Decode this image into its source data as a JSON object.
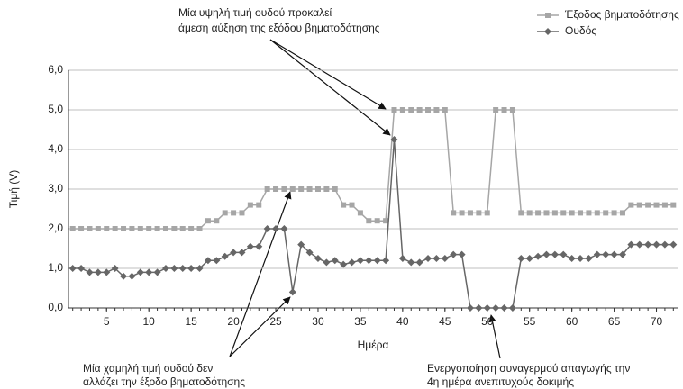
{
  "chart_data": {
    "type": "line",
    "y_label": "Τιμή (V)",
    "x_label": "Ημέρα",
    "x": [
      1,
      2,
      3,
      4,
      5,
      6,
      7,
      8,
      9,
      10,
      11,
      12,
      13,
      14,
      15,
      16,
      17,
      18,
      19,
      20,
      21,
      22,
      23,
      24,
      25,
      26,
      27,
      28,
      29,
      30,
      31,
      32,
      33,
      34,
      35,
      36,
      37,
      38,
      39,
      40,
      41,
      42,
      43,
      44,
      45,
      46,
      47,
      48,
      49,
      50,
      51,
      52,
      53,
      54,
      55,
      56,
      57,
      58,
      59,
      60,
      61,
      62,
      63,
      64,
      65,
      66,
      67,
      68,
      69,
      70,
      71,
      72
    ],
    "series": [
      {
        "name": "Έξοδος βηματοδότησης",
        "color": "#a6a6a6",
        "marker": "square",
        "values": [
          2.0,
          2.0,
          2.0,
          2.0,
          2.0,
          2.0,
          2.0,
          2.0,
          2.0,
          2.0,
          2.0,
          2.0,
          2.0,
          2.0,
          2.0,
          2.0,
          2.2,
          2.2,
          2.4,
          2.4,
          2.4,
          2.6,
          2.6,
          3.0,
          3.0,
          3.0,
          3.0,
          3.0,
          3.0,
          3.0,
          3.0,
          3.0,
          2.6,
          2.6,
          2.4,
          2.2,
          2.2,
          2.2,
          5.0,
          5.0,
          5.0,
          5.0,
          5.0,
          5.0,
          5.0,
          2.4,
          2.4,
          2.4,
          2.4,
          2.4,
          5.0,
          5.0,
          5.0,
          2.4,
          2.4,
          2.4,
          2.4,
          2.4,
          2.4,
          2.4,
          2.4,
          2.4,
          2.4,
          2.4,
          2.4,
          2.4,
          2.6,
          2.6,
          2.6,
          2.6,
          2.6,
          2.6
        ]
      },
      {
        "name": "Ουδός",
        "color": "#666666",
        "marker": "diamond",
        "values": [
          1.0,
          1.0,
          0.9,
          0.9,
          0.9,
          1.0,
          0.8,
          0.8,
          0.9,
          0.9,
          0.9,
          1.0,
          1.0,
          1.0,
          1.0,
          1.0,
          1.2,
          1.2,
          1.3,
          1.4,
          1.4,
          1.55,
          1.55,
          2.0,
          2.0,
          2.0,
          0.4,
          1.6,
          1.4,
          1.25,
          1.15,
          1.2,
          1.1,
          1.15,
          1.2,
          1.2,
          1.2,
          1.2,
          4.25,
          1.25,
          1.15,
          1.15,
          1.25,
          1.25,
          1.25,
          1.35,
          1.35,
          0.0,
          0.0,
          0.0,
          0.0,
          0.0,
          0.0,
          1.25,
          1.25,
          1.3,
          1.35,
          1.35,
          1.35,
          1.25,
          1.25,
          1.25,
          1.35,
          1.35,
          1.35,
          1.35,
          1.6,
          1.6,
          1.6,
          1.6,
          1.6,
          1.6
        ]
      }
    ],
    "xlim": [
      0.5,
      72.5
    ],
    "xticks": [
      5,
      10,
      15,
      20,
      25,
      30,
      35,
      40,
      45,
      50,
      55,
      60,
      65,
      70
    ],
    "ylim": [
      0,
      6
    ],
    "yticks": [
      {
        "value": 0,
        "label": "0,0"
      },
      {
        "value": 1,
        "label": "1,0"
      },
      {
        "value": 2,
        "label": "2,0"
      },
      {
        "value": 3,
        "label": "3,0"
      },
      {
        "value": 4,
        "label": "4,0"
      },
      {
        "value": 5,
        "label": "5,0"
      },
      {
        "value": 6,
        "label": "6,0"
      }
    ],
    "grid": true,
    "legend": "top-right",
    "annotations": [
      {
        "lines": [
          "Μία υψηλή τιμή ουδού προκαλεί",
          "άμεση αύξηση της εξόδου βηματοδότησης"
        ]
      },
      {
        "lines": [
          "Μία χαμηλή τιμή ουδού δεν",
          "αλλάζει την έξοδο βηματοδότησης"
        ]
      },
      {
        "lines": [
          "Ενεργοποίηση συναγερμού απαγωγής την",
          "4η ημέρα ανεπιτυχούς δοκιμής"
        ]
      }
    ]
  }
}
